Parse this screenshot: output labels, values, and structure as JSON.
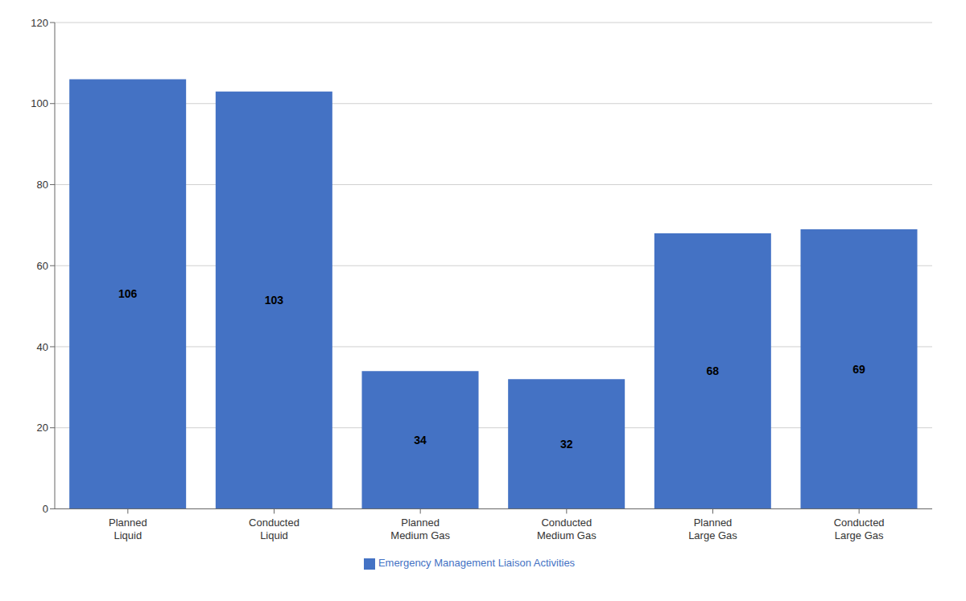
{
  "chart_data": {
    "type": "bar",
    "categories": [
      "Planned\nLiquid",
      "Conducted\nLiquid",
      "Planned\nMedium Gas",
      "Conducted\nMedium Gas",
      "Planned\nLarge Gas",
      "Conducted\nLarge Gas"
    ],
    "series": [
      {
        "name": "Emergency Management Liaison Activities",
        "color": "#4472C4",
        "values": [
          106,
          103,
          34,
          32,
          68,
          69
        ]
      }
    ],
    "ylim": [
      0,
      120
    ],
    "yticks": [
      0,
      20,
      40,
      60,
      80,
      100,
      120
    ],
    "grid": true,
    "legend": "bottom",
    "data_labels": true
  }
}
